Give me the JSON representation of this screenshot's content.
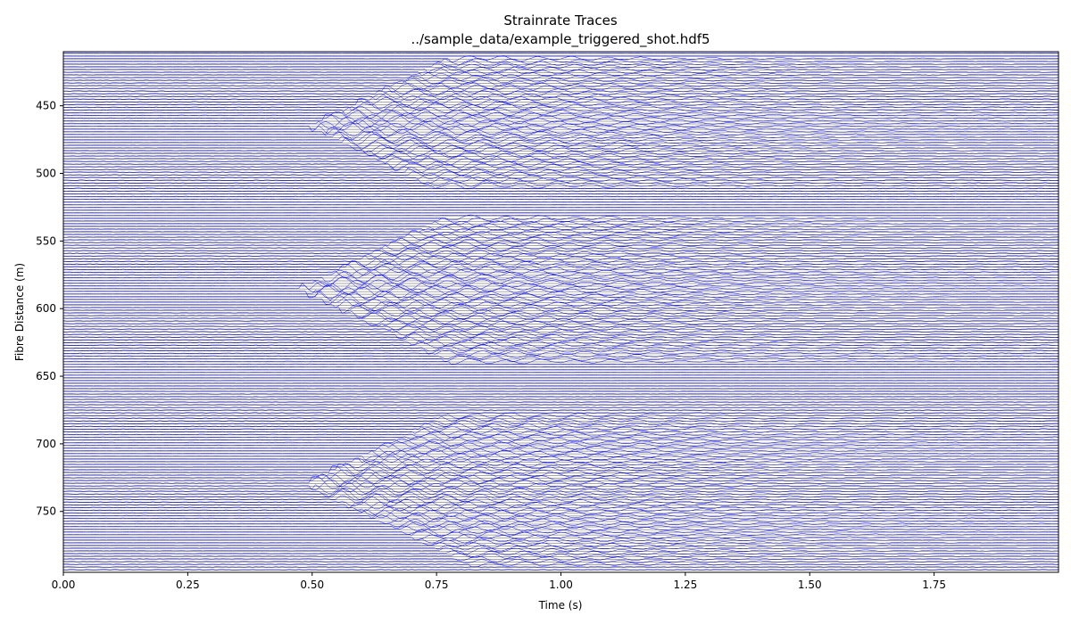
{
  "chart_data": {
    "type": "line",
    "title": "Strainrate Traces",
    "subtitle": "../sample_data/example_triggered_shot.hdf5",
    "xlabel": "Time (s)",
    "ylabel": "Fibre Distance (m)",
    "xlim": [
      0.0,
      2.0
    ],
    "ylim": [
      795,
      410
    ],
    "x_ticks": [
      0.0,
      0.25,
      0.5,
      0.75,
      1.0,
      1.25,
      1.5,
      1.75
    ],
    "x_tick_labels": [
      "0.00",
      "0.25",
      "0.50",
      "0.75",
      "1.00",
      "1.25",
      "1.50",
      "1.75"
    ],
    "y_ticks": [
      450,
      500,
      550,
      600,
      650,
      700,
      750
    ],
    "y_tick_labels": [
      "450",
      "500",
      "550",
      "600",
      "650",
      "700",
      "750"
    ],
    "trace_spacing_m": 2,
    "trace_color": "#0000ff",
    "grid": false,
    "legend": false,
    "events": [
      {
        "distance_m": 465,
        "onset_time_s": 0.5,
        "extent_m": [
          415,
          510
        ]
      },
      {
        "distance_m": 585,
        "onset_time_s": 0.48,
        "extent_m": [
          533,
          640
        ]
      },
      {
        "distance_m": 730,
        "onset_time_s": 0.49,
        "extent_m": [
          678,
          790
        ]
      }
    ]
  }
}
